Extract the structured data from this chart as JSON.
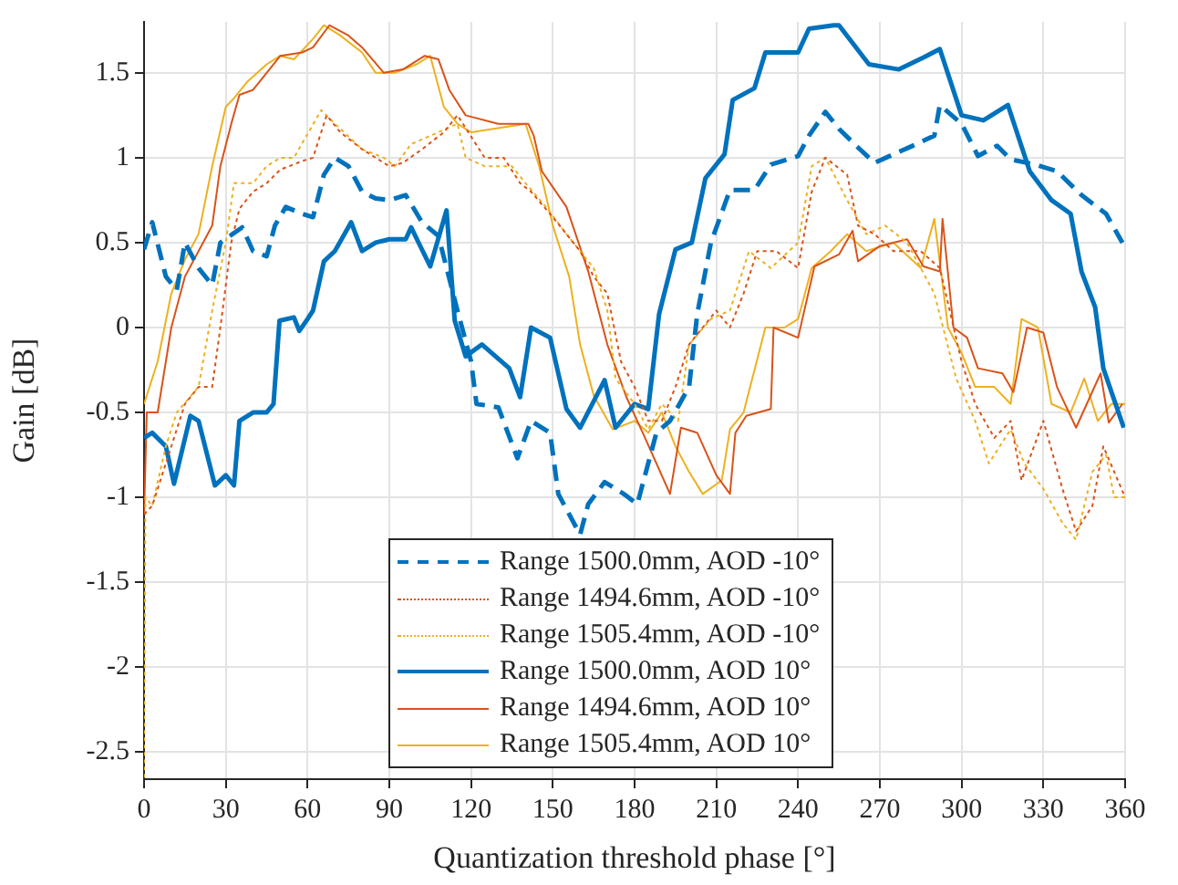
{
  "chart_data": {
    "type": "line",
    "xlabel": "Quantization threshold phase [°]",
    "ylabel": "Gain [dB]",
    "xlim": [
      0,
      360
    ],
    "xticks": [
      0,
      30,
      60,
      90,
      120,
      150,
      180,
      210,
      240,
      270,
      300,
      330,
      360
    ],
    "ylim": [
      -2.66,
      1.8
    ],
    "yticks": [
      -2.5,
      -2,
      -1.5,
      -1,
      -0.5,
      0,
      0.5,
      1,
      1.5
    ],
    "grid": true,
    "legend": "bottom",
    "marker": "none",
    "series": [
      {
        "name": "Range 1500.0mm, AOD -10°",
        "color": "#0072bd",
        "line_style": "dashed",
        "x": [
          0,
          3,
          8,
          12,
          15,
          20,
          25,
          28,
          36,
          40,
          45,
          48,
          52,
          58,
          62,
          66,
          70,
          75,
          80,
          85,
          90,
          96,
          102,
          108,
          115,
          120,
          122,
          130,
          137,
          142,
          149,
          152,
          160,
          163,
          169,
          176,
          181,
          188,
          193,
          200,
          203,
          208,
          215,
          224,
          230,
          240,
          244,
          250,
          255,
          262,
          268,
          275,
          282,
          290,
          292,
          300,
          306,
          313,
          318,
          327,
          335,
          344,
          353,
          359
        ],
        "values": [
          0.46,
          0.62,
          0.3,
          0.22,
          0.5,
          0.35,
          0.25,
          0.5,
          0.59,
          0.45,
          0.42,
          0.6,
          0.71,
          0.67,
          0.65,
          0.9,
          1.0,
          0.95,
          0.8,
          0.76,
          0.75,
          0.78,
          0.62,
          0.54,
          0.1,
          -0.2,
          -0.45,
          -0.47,
          -0.77,
          -0.55,
          -0.62,
          -0.98,
          -1.22,
          -1.04,
          -0.91,
          -0.98,
          -1.04,
          -0.62,
          -0.55,
          -0.35,
          0.08,
          0.5,
          0.81,
          0.81,
          0.96,
          1.01,
          1.13,
          1.27,
          1.17,
          1.06,
          0.97,
          1.02,
          1.07,
          1.13,
          1.31,
          1.2,
          1.01,
          1.07,
          0.99,
          0.96,
          0.92,
          0.78,
          0.67,
          0.5
        ]
      },
      {
        "name": "Range 1494.6mm, AOD -10°",
        "color": "#d95319",
        "line_style": "dotted",
        "x": [
          0,
          3,
          8,
          12,
          15,
          20,
          25,
          28,
          32,
          35,
          40,
          45,
          50,
          58,
          62,
          67,
          72,
          80,
          90,
          95,
          102,
          110,
          115,
          125,
          132,
          138,
          142,
          150,
          155,
          160,
          165,
          170,
          175,
          180,
          185,
          190,
          195,
          200,
          205,
          210,
          215,
          220,
          225,
          232,
          240,
          245,
          250,
          258,
          262,
          268,
          275,
          285,
          292,
          300,
          305,
          312,
          318,
          322,
          330,
          337,
          342,
          348,
          352,
          356,
          360
        ],
        "values": [
          -1.1,
          -1.05,
          -0.8,
          -0.6,
          -0.45,
          -0.35,
          -0.35,
          0.0,
          0.5,
          0.7,
          0.8,
          0.85,
          0.93,
          0.98,
          1.0,
          1.25,
          1.15,
          1.05,
          0.95,
          0.97,
          1.05,
          1.15,
          1.25,
          1.0,
          1.0,
          0.85,
          0.8,
          0.65,
          0.55,
          0.45,
          0.3,
          0.2,
          -0.2,
          -0.35,
          -0.55,
          -0.55,
          -0.35,
          -0.1,
          0.0,
          0.1,
          0.0,
          0.2,
          0.45,
          0.45,
          0.35,
          0.8,
          1.0,
          0.9,
          0.6,
          0.55,
          0.45,
          0.45,
          0.35,
          -0.2,
          -0.45,
          -0.65,
          -0.55,
          -0.9,
          -0.55,
          -0.95,
          -1.2,
          -1.05,
          -0.7,
          -0.85,
          -1.0
        ]
      },
      {
        "name": "Range 1505.4mm, AOD -10°",
        "color": "#edb120",
        "line_style": "dotted",
        "x": [
          0,
          0.5,
          3,
          8,
          12,
          20,
          25,
          30,
          33,
          40,
          45,
          50,
          55,
          65,
          70,
          80,
          88,
          92,
          98,
          108,
          115,
          118,
          125,
          135,
          140,
          148,
          155,
          160,
          165,
          170,
          173,
          180,
          185,
          190,
          196,
          200,
          208,
          215,
          222,
          230,
          240,
          245,
          250,
          258,
          265,
          272,
          280,
          290,
          298,
          305,
          310,
          318,
          323,
          330,
          337,
          342,
          348,
          353,
          356,
          360
        ],
        "values": [
          -2.65,
          -1.0,
          -1.05,
          -0.7,
          -0.5,
          -0.35,
          0.1,
          0.5,
          0.85,
          0.85,
          0.95,
          1.0,
          1.0,
          1.28,
          1.2,
          1.05,
          1.0,
          0.95,
          1.08,
          1.15,
          1.2,
          1.0,
          0.95,
          0.95,
          0.85,
          0.7,
          0.55,
          0.45,
          0.35,
          0.1,
          -0.3,
          -0.45,
          -0.6,
          -0.45,
          -0.55,
          -0.1,
          0.05,
          0.1,
          0.45,
          0.35,
          0.5,
          0.95,
          1.0,
          0.75,
          0.55,
          0.6,
          0.5,
          0.2,
          -0.3,
          -0.55,
          -0.8,
          -0.6,
          -0.8,
          -0.95,
          -1.15,
          -1.25,
          -0.85,
          -0.75,
          -1.0,
          -1.0
        ]
      },
      {
        "name": "Range 1500.0mm, AOD 10°",
        "color": "#0072bd",
        "line_style": "solid",
        "x": [
          0,
          3,
          8,
          11,
          17,
          20,
          26,
          30,
          33,
          35,
          40,
          45,
          47.5,
          49.7,
          55,
          57,
          60,
          62,
          66,
          70,
          76,
          80,
          85,
          90,
          96,
          98,
          105,
          111,
          114,
          118,
          124,
          134,
          138,
          142,
          149,
          155,
          160,
          169,
          173,
          180,
          185,
          189,
          195,
          201,
          206,
          213,
          216,
          224,
          228,
          240,
          244,
          253,
          255,
          266,
          277,
          286,
          292,
          300,
          308,
          317,
          325,
          333,
          340,
          344,
          349,
          352,
          355,
          359.5
        ],
        "values": [
          -0.65,
          -0.62,
          -0.7,
          -0.92,
          -0.52,
          -0.55,
          -0.93,
          -0.87,
          -0.93,
          -0.55,
          -0.5,
          -0.5,
          -0.45,
          0.04,
          0.06,
          -0.02,
          0.05,
          0.1,
          0.39,
          0.45,
          0.62,
          0.45,
          0.5,
          0.52,
          0.52,
          0.59,
          0.36,
          0.69,
          0.04,
          -0.17,
          -0.1,
          -0.24,
          -0.41,
          0.0,
          -0.06,
          -0.48,
          -0.59,
          -0.31,
          -0.59,
          -0.45,
          -0.48,
          0.08,
          0.46,
          0.5,
          0.88,
          1.02,
          1.34,
          1.41,
          1.62,
          1.62,
          1.76,
          1.78,
          1.78,
          1.55,
          1.52,
          1.59,
          1.64,
          1.25,
          1.22,
          1.31,
          0.92,
          0.75,
          0.67,
          0.33,
          0.12,
          -0.24,
          -0.38,
          -0.59
        ]
      },
      {
        "name": "Range 1494.6mm, AOD 10°",
        "color": "#d95319",
        "line_style": "solid",
        "x": [
          0,
          1,
          5,
          10,
          15,
          20,
          25,
          28,
          32,
          35,
          40,
          45,
          50,
          58,
          62,
          68,
          75,
          80,
          88,
          95,
          103,
          108,
          112,
          118,
          130,
          141,
          143,
          146,
          155,
          163,
          170,
          177,
          183,
          193,
          197,
          203,
          210,
          215,
          217,
          221,
          230,
          231,
          240,
          246,
          255,
          260,
          262,
          270,
          280,
          286,
          292,
          293,
          297,
          302,
          306,
          315,
          319,
          324,
          330,
          335,
          342,
          351,
          354,
          359
        ],
        "values": [
          -1.1,
          -0.5,
          -0.5,
          0.0,
          0.3,
          0.45,
          0.6,
          0.95,
          1.2,
          1.37,
          1.4,
          1.5,
          1.6,
          1.62,
          1.65,
          1.78,
          1.72,
          1.65,
          1.5,
          1.52,
          1.6,
          1.58,
          1.4,
          1.25,
          1.2,
          1.2,
          1.13,
          0.92,
          0.71,
          0.33,
          -0.1,
          -0.41,
          -0.62,
          -0.98,
          -0.59,
          -0.62,
          -0.87,
          -0.98,
          -0.62,
          -0.52,
          -0.48,
          0.0,
          -0.06,
          0.36,
          0.43,
          0.57,
          0.39,
          0.48,
          0.52,
          0.36,
          0.33,
          0.64,
          0.0,
          -0.06,
          -0.24,
          -0.27,
          -0.38,
          0.0,
          -0.03,
          -0.35,
          -0.59,
          -0.27,
          -0.56,
          -0.45
        ]
      },
      {
        "name": "Range 1505.4mm, AOD 10°",
        "color": "#edb120",
        "line_style": "solid",
        "x": [
          0,
          5,
          10,
          15,
          20,
          25,
          30,
          33,
          38,
          45,
          50,
          55,
          62,
          66,
          72,
          80,
          85,
          92,
          100,
          105,
          110,
          115,
          120,
          140,
          145,
          150,
          156,
          160,
          165,
          172,
          180,
          185,
          190,
          195,
          200,
          205,
          212,
          215,
          220,
          228,
          235,
          240,
          245,
          252,
          258,
          265,
          275,
          285,
          290,
          295,
          300,
          305,
          312,
          318,
          322,
          328,
          333,
          340,
          345,
          350,
          355,
          360
        ],
        "values": [
          -0.45,
          -0.2,
          0.2,
          0.4,
          0.55,
          0.95,
          1.3,
          1.35,
          1.45,
          1.55,
          1.6,
          1.58,
          1.7,
          1.78,
          1.72,
          1.62,
          1.5,
          1.5,
          1.55,
          1.6,
          1.3,
          1.2,
          1.15,
          1.2,
          0.95,
          0.6,
          0.3,
          -0.1,
          -0.4,
          -0.6,
          -0.55,
          -0.62,
          -0.5,
          -0.7,
          -0.85,
          -0.98,
          -0.9,
          -0.6,
          -0.5,
          0.0,
          0.0,
          0.05,
          0.35,
          0.45,
          0.55,
          0.45,
          0.5,
          0.35,
          0.64,
          0.0,
          -0.15,
          -0.35,
          -0.35,
          -0.45,
          0.05,
          0.0,
          -0.45,
          -0.5,
          -0.3,
          -0.55,
          -0.45,
          -0.45
        ]
      }
    ]
  }
}
